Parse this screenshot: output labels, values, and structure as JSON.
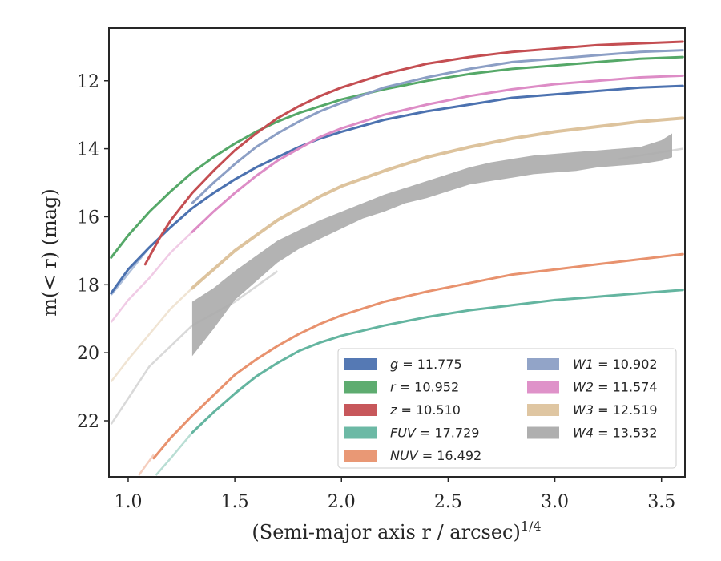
{
  "chart_data": {
    "type": "line",
    "xlabel": "(Semi-major axis r / arcsec)",
    "xlabel_superscript": "1/4",
    "ylabel": "m(< r) (mag)",
    "xlim": [
      0.91,
      3.61
    ],
    "ylim": [
      23.65,
      10.45
    ],
    "y_inverted": true,
    "grid": false,
    "legend_position": "lower-right",
    "xticks": [
      "1.0",
      "1.5",
      "2.0",
      "2.5",
      "3.0",
      "3.5"
    ],
    "yticks": [
      "12",
      "14",
      "16",
      "18",
      "20",
      "22"
    ],
    "series": [
      {
        "name": "g = 11.775",
        "legend_label": "g = 11.775",
        "color": "#4C72B0",
        "width": 3,
        "faint_points": [
          [
            0.92,
            18.3
          ],
          [
            1.1,
            16.9
          ]
        ],
        "points": [
          [
            0.92,
            18.25
          ],
          [
            1.0,
            17.55
          ],
          [
            1.1,
            16.9
          ],
          [
            1.2,
            16.3
          ],
          [
            1.3,
            15.75
          ],
          [
            1.4,
            15.3
          ],
          [
            1.5,
            14.9
          ],
          [
            1.6,
            14.55
          ],
          [
            1.7,
            14.25
          ],
          [
            1.8,
            13.95
          ],
          [
            1.9,
            13.7
          ],
          [
            2.0,
            13.5
          ],
          [
            2.2,
            13.15
          ],
          [
            2.4,
            12.9
          ],
          [
            2.6,
            12.7
          ],
          [
            2.8,
            12.5
          ],
          [
            3.0,
            12.4
          ],
          [
            3.2,
            12.3
          ],
          [
            3.4,
            12.2
          ],
          [
            3.6,
            12.15
          ]
        ]
      },
      {
        "name": "r = 10.952",
        "legend_label": "r = 10.952",
        "color": "#55A868",
        "width": 3,
        "faint_points": [],
        "points": [
          [
            0.92,
            17.2
          ],
          [
            1.0,
            16.55
          ],
          [
            1.1,
            15.85
          ],
          [
            1.2,
            15.25
          ],
          [
            1.3,
            14.7
          ],
          [
            1.4,
            14.25
          ],
          [
            1.5,
            13.85
          ],
          [
            1.6,
            13.5
          ],
          [
            1.7,
            13.2
          ],
          [
            1.8,
            12.95
          ],
          [
            1.9,
            12.75
          ],
          [
            2.0,
            12.55
          ],
          [
            2.2,
            12.25
          ],
          [
            2.4,
            12.0
          ],
          [
            2.6,
            11.8
          ],
          [
            2.8,
            11.65
          ],
          [
            3.0,
            11.55
          ],
          [
            3.2,
            11.45
          ],
          [
            3.4,
            11.35
          ],
          [
            3.6,
            11.3
          ]
        ]
      },
      {
        "name": "z = 10.510",
        "legend_label": "z = 10.510",
        "color": "#C44E52",
        "width": 3,
        "faint_points": [],
        "points": [
          [
            1.08,
            17.4
          ],
          [
            1.15,
            16.6
          ],
          [
            1.2,
            16.1
          ],
          [
            1.3,
            15.3
          ],
          [
            1.4,
            14.65
          ],
          [
            1.5,
            14.05
          ],
          [
            1.6,
            13.55
          ],
          [
            1.7,
            13.1
          ],
          [
            1.8,
            12.75
          ],
          [
            1.9,
            12.45
          ],
          [
            2.0,
            12.2
          ],
          [
            2.2,
            11.8
          ],
          [
            2.4,
            11.5
          ],
          [
            2.6,
            11.3
          ],
          [
            2.8,
            11.15
          ],
          [
            3.0,
            11.05
          ],
          [
            3.2,
            10.95
          ],
          [
            3.4,
            10.9
          ],
          [
            3.6,
            10.85
          ]
        ]
      },
      {
        "name": "FUV = 17.729",
        "legend_label": "FUV = 17.729",
        "color": "#64B5A0",
        "width": 3,
        "faint_points": [
          [
            1.13,
            23.6
          ],
          [
            1.2,
            23.1
          ],
          [
            1.3,
            22.35
          ]
        ],
        "points": [
          [
            1.3,
            22.35
          ],
          [
            1.4,
            21.75
          ],
          [
            1.5,
            21.2
          ],
          [
            1.6,
            20.7
          ],
          [
            1.7,
            20.3
          ],
          [
            1.8,
            19.95
          ],
          [
            1.9,
            19.7
          ],
          [
            2.0,
            19.5
          ],
          [
            2.2,
            19.2
          ],
          [
            2.4,
            18.95
          ],
          [
            2.6,
            18.75
          ],
          [
            2.8,
            18.6
          ],
          [
            3.0,
            18.45
          ],
          [
            3.2,
            18.35
          ],
          [
            3.4,
            18.25
          ],
          [
            3.6,
            18.15
          ]
        ]
      },
      {
        "name": "NUV = 16.492",
        "legend_label": "NUV = 16.492",
        "color": "#E8926E",
        "width": 3,
        "faint_points": [
          [
            1.05,
            23.6
          ],
          [
            1.12,
            23.0
          ]
        ],
        "points": [
          [
            1.12,
            23.1
          ],
          [
            1.2,
            22.5
          ],
          [
            1.3,
            21.85
          ],
          [
            1.4,
            21.25
          ],
          [
            1.5,
            20.65
          ],
          [
            1.6,
            20.2
          ],
          [
            1.7,
            19.8
          ],
          [
            1.8,
            19.45
          ],
          [
            1.9,
            19.15
          ],
          [
            2.0,
            18.9
          ],
          [
            2.2,
            18.5
          ],
          [
            2.4,
            18.2
          ],
          [
            2.6,
            17.95
          ],
          [
            2.8,
            17.7
          ],
          [
            3.0,
            17.55
          ],
          [
            3.2,
            17.4
          ],
          [
            3.4,
            17.25
          ],
          [
            3.6,
            17.1
          ]
        ]
      },
      {
        "name": "W1 = 10.902",
        "legend_label": "W1 = 10.902",
        "color": "#8C9FC5",
        "width": 3,
        "faint_points": [],
        "points": [
          [
            1.3,
            15.6
          ],
          [
            1.4,
            15.0
          ],
          [
            1.5,
            14.45
          ],
          [
            1.6,
            13.95
          ],
          [
            1.7,
            13.55
          ],
          [
            1.8,
            13.2
          ],
          [
            1.9,
            12.9
          ],
          [
            2.0,
            12.65
          ],
          [
            2.2,
            12.2
          ],
          [
            2.4,
            11.9
          ],
          [
            2.6,
            11.65
          ],
          [
            2.8,
            11.45
          ],
          [
            3.0,
            11.35
          ],
          [
            3.2,
            11.25
          ],
          [
            3.4,
            11.15
          ],
          [
            3.6,
            11.1
          ]
        ]
      },
      {
        "name": "W2 = 11.574",
        "legend_label": "W2 = 11.574",
        "color": "#DD8CC6",
        "width": 3,
        "faint_points": [
          [
            0.92,
            19.1
          ],
          [
            1.0,
            18.45
          ],
          [
            1.1,
            17.8
          ],
          [
            1.2,
            17.05
          ],
          [
            1.3,
            16.45
          ]
        ],
        "points": [
          [
            1.3,
            16.45
          ],
          [
            1.4,
            15.85
          ],
          [
            1.5,
            15.3
          ],
          [
            1.6,
            14.8
          ],
          [
            1.7,
            14.35
          ],
          [
            1.8,
            14.0
          ],
          [
            1.9,
            13.65
          ],
          [
            2.0,
            13.4
          ],
          [
            2.2,
            13.0
          ],
          [
            2.4,
            12.7
          ],
          [
            2.6,
            12.45
          ],
          [
            2.8,
            12.25
          ],
          [
            3.0,
            12.1
          ],
          [
            3.2,
            12.0
          ],
          [
            3.4,
            11.9
          ],
          [
            3.6,
            11.85
          ]
        ]
      },
      {
        "name": "W3 = 12.519",
        "legend_label": "W3 = 12.519",
        "color": "#DDC39D",
        "width": 4,
        "faint_points": [
          [
            0.92,
            20.85
          ],
          [
            1.0,
            20.2
          ],
          [
            1.1,
            19.45
          ],
          [
            1.2,
            18.7
          ],
          [
            1.3,
            18.1
          ]
        ],
        "points": [
          [
            1.3,
            18.1
          ],
          [
            1.4,
            17.55
          ],
          [
            1.5,
            17.0
          ],
          [
            1.6,
            16.55
          ],
          [
            1.7,
            16.1
          ],
          [
            1.8,
            15.75
          ],
          [
            1.9,
            15.4
          ],
          [
            2.0,
            15.1
          ],
          [
            2.2,
            14.65
          ],
          [
            2.4,
            14.25
          ],
          [
            2.6,
            13.95
          ],
          [
            2.8,
            13.7
          ],
          [
            3.0,
            13.5
          ],
          [
            3.2,
            13.35
          ],
          [
            3.4,
            13.2
          ],
          [
            3.6,
            13.1
          ]
        ]
      },
      {
        "name": "W4 = 13.532",
        "legend_label": "W4 = 13.532",
        "color": "#ABABAB",
        "width": 3,
        "faint_points": [
          [
            0.92,
            22.1
          ],
          [
            1.1,
            20.4
          ],
          [
            1.3,
            19.2
          ],
          [
            1.5,
            18.5
          ],
          [
            1.7,
            17.6
          ]
        ],
        "faint_tail": [
          [
            3.3,
            14.3
          ],
          [
            3.45,
            14.15
          ],
          [
            3.6,
            14.0
          ]
        ],
        "band_lower": [
          [
            1.3,
            20.1
          ],
          [
            1.4,
            19.3
          ],
          [
            1.5,
            18.45
          ],
          [
            1.6,
            17.9
          ],
          [
            1.7,
            17.35
          ],
          [
            1.8,
            16.95
          ],
          [
            1.9,
            16.65
          ],
          [
            2.0,
            16.35
          ],
          [
            2.1,
            16.05
          ],
          [
            2.2,
            15.85
          ],
          [
            2.3,
            15.6
          ],
          [
            2.4,
            15.45
          ],
          [
            2.5,
            15.25
          ],
          [
            2.6,
            15.05
          ],
          [
            2.7,
            14.95
          ],
          [
            2.8,
            14.85
          ],
          [
            2.9,
            14.75
          ],
          [
            3.0,
            14.7
          ],
          [
            3.1,
            14.65
          ],
          [
            3.2,
            14.55
          ],
          [
            3.3,
            14.5
          ],
          [
            3.4,
            14.45
          ],
          [
            3.5,
            14.35
          ],
          [
            3.55,
            14.25
          ]
        ],
        "band_upper": [
          [
            1.3,
            18.5
          ],
          [
            1.4,
            18.1
          ],
          [
            1.5,
            17.6
          ],
          [
            1.6,
            17.15
          ],
          [
            1.7,
            16.7
          ],
          [
            1.8,
            16.4
          ],
          [
            1.9,
            16.1
          ],
          [
            2.0,
            15.85
          ],
          [
            2.1,
            15.6
          ],
          [
            2.2,
            15.35
          ],
          [
            2.3,
            15.15
          ],
          [
            2.4,
            14.95
          ],
          [
            2.5,
            14.75
          ],
          [
            2.6,
            14.55
          ],
          [
            2.7,
            14.4
          ],
          [
            2.8,
            14.3
          ],
          [
            2.9,
            14.2
          ],
          [
            3.0,
            14.15
          ],
          [
            3.1,
            14.1
          ],
          [
            3.2,
            14.05
          ],
          [
            3.3,
            14.0
          ],
          [
            3.4,
            13.95
          ],
          [
            3.5,
            13.75
          ],
          [
            3.55,
            13.55
          ]
        ]
      }
    ]
  }
}
